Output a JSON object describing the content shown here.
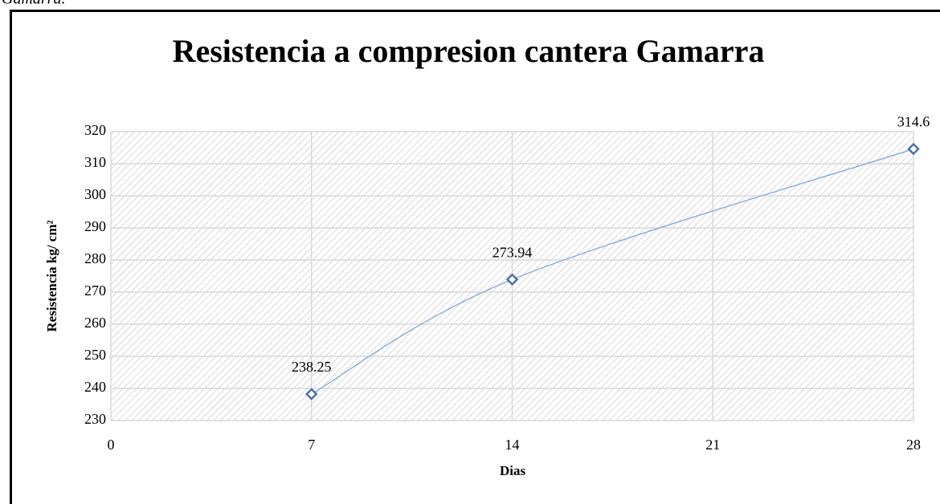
{
  "caption": "Gamarra.",
  "chart_data": {
    "type": "scatter",
    "title": "Resistencia a compresion cantera Gamarra",
    "x_label": "Dias",
    "y_label": "Resistencia kg/ cm²",
    "series": [
      {
        "name": "Resistencia",
        "color": "#4a72b0",
        "line_color": "#8fb0d8",
        "x": [
          7,
          14,
          28
        ],
        "values": [
          238.25,
          273.94,
          314.6
        ]
      }
    ],
    "xlim": [
      0,
      28
    ],
    "xticks": [
      0,
      7,
      14,
      21,
      28
    ],
    "ylim": [
      230,
      320
    ],
    "yticks": [
      230,
      240,
      250,
      260,
      270,
      280,
      290,
      300,
      310,
      320
    ],
    "grid": true,
    "smooth": true,
    "data_labels": true
  }
}
